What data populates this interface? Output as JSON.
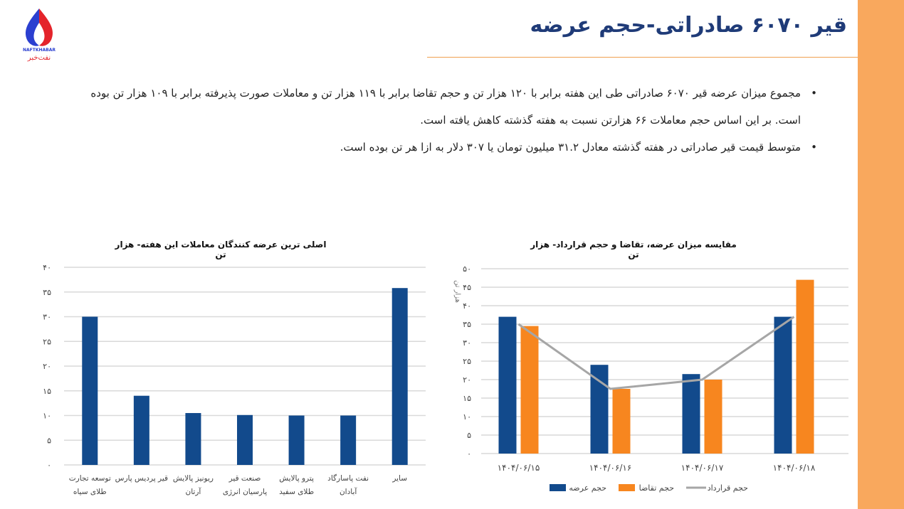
{
  "header": {
    "title": "قیر ۶۰۷۰ صادراتی-حجم عرضه",
    "logo_text": "NAFTKHABAR نفت‌خبر"
  },
  "bullets": [
    "مجموع میزان عرضه قیر ۶۰۷۰ صادراتی طی این هفته برابر با ۱۲۰ هزار تن و حجم تقاضا برابر با ۱۱۹ هزار تن و معاملات صورت پذیرفته برابر با ۱۰۹ هزار تن بوده است. بر این اساس حجم معاملات ۶۶ هزارتن نسبت به هفته گذشته کاهش یافته است.",
    "متوسط قیمت قیر صادراتی در هفته گذشته معادل ۳۱.۲ میلیون تومان یا ۳۰۷ دلار به ازا هر تن بوده است."
  ],
  "colors": {
    "blue": "#124a8c",
    "orange": "#f7861f",
    "gray": "#a6a6a6",
    "accent": "#f9a85d"
  },
  "chart_data": [
    {
      "type": "bar",
      "title": "اصلی ترین عرضه کنندگان معاملات این هفته- هزار تن",
      "categories": [
        "توسعه تجارت طلای سیاه",
        "قیر پردیس پارس",
        "ریونیز پالایش آرتان",
        "صنعت قیر پارسیان انرژی",
        "پترو پالایش طلای سفید",
        "نفت پاسارگاد آبادان",
        "سایر"
      ],
      "values": [
        30,
        14,
        10.5,
        10.1,
        10,
        10,
        35.8
      ],
      "yticks": [
        "۰",
        "۵",
        "۱۰",
        "۱۵",
        "۲۰",
        "۲۵",
        "۳۰",
        "۳۵",
        "۴۰"
      ],
      "ylim": [
        0,
        40
      ]
    },
    {
      "type": "bar+line",
      "title": "مقایسه میزان عرضه، تقاضا و حجم قرارداد-  هزار تن",
      "ylabel": "هزار تن",
      "categories": [
        "۱۴۰۴/۰۶/۱۵",
        "۱۴۰۴/۰۶/۱۶",
        "۱۴۰۴/۰۶/۱۷",
        "۱۴۰۴/۰۶/۱۸"
      ],
      "series": [
        {
          "name": "حجم عرضه",
          "type": "bar",
          "values": [
            37,
            24,
            21.5,
            37
          ]
        },
        {
          "name": "حجم تقاضا",
          "type": "bar",
          "values": [
            34.5,
            17.5,
            20,
            47
          ]
        },
        {
          "name": "حجم قرارداد",
          "type": "line",
          "values": [
            35,
            17.5,
            20,
            37
          ]
        }
      ],
      "yticks": [
        "۰",
        "۵",
        "۱۰",
        "۱۵",
        "۲۰",
        "۲۵",
        "۳۰",
        "۳۵",
        "۴۰",
        "۴۵",
        "۵۰"
      ],
      "ylim": [
        0,
        50
      ]
    }
  ]
}
